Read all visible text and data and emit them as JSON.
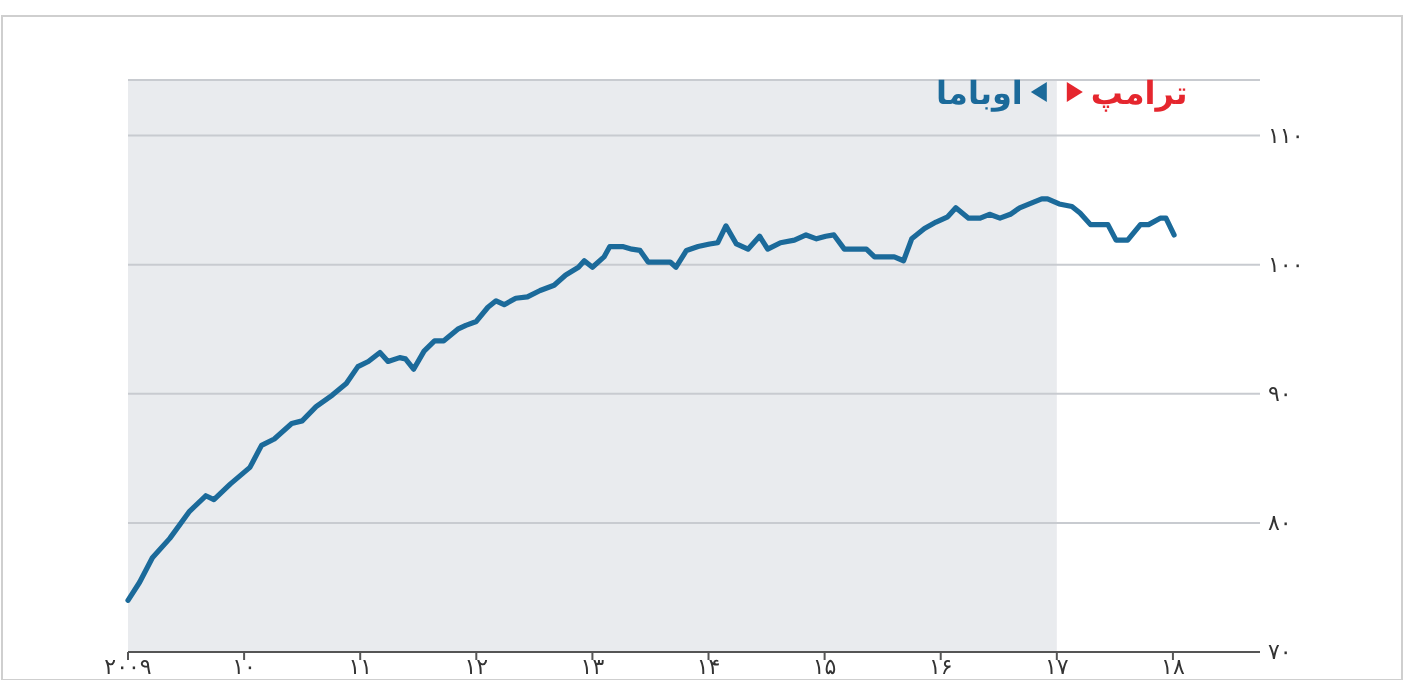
{
  "chart_data": {
    "type": "line",
    "x": [
      2009.0,
      2009.1,
      2009.21,
      2009.36,
      2009.53,
      2009.67,
      2009.74,
      2009.88,
      2010.05,
      2010.15,
      2010.26,
      2010.41,
      2010.5,
      2010.62,
      2010.76,
      2010.88,
      2010.98,
      2011.07,
      2011.17,
      2011.24,
      2011.34,
      2011.39,
      2011.46,
      2011.55,
      2011.64,
      2011.72,
      2011.84,
      2011.91,
      2012.0,
      2012.1,
      2012.17,
      2012.24,
      2012.34,
      2012.44,
      2012.55,
      2012.67,
      2012.77,
      2012.88,
      2012.93,
      2013.0,
      2013.1,
      2013.15,
      2013.26,
      2013.34,
      2013.41,
      2013.48,
      2013.6,
      2013.67,
      2013.72,
      2013.81,
      2013.91,
      2014.01,
      2014.08,
      2014.15,
      2014.24,
      2014.34,
      2014.44,
      2014.51,
      2014.62,
      2014.74,
      2014.84,
      2014.93,
      2015.01,
      2015.08,
      2015.17,
      2015.27,
      2015.36,
      2015.43,
      2015.53,
      2015.6,
      2015.68,
      2015.75,
      2015.86,
      2015.96,
      2016.06,
      2016.13,
      2016.24,
      2016.34,
      2016.42,
      2016.51,
      2016.6,
      2016.68,
      2016.79,
      2016.87,
      2016.92,
      2017.02,
      2017.13,
      2017.2,
      2017.29,
      2017.37,
      2017.44,
      2017.51,
      2017.61,
      2017.72,
      2017.79,
      2017.89,
      2017.94,
      2018.01
    ],
    "series": [
      {
        "color": "#1b6a9a",
        "values": [
          74.0,
          75.4,
          77.3,
          78.8,
          80.9,
          82.1,
          81.8,
          83.0,
          84.3,
          86.0,
          86.5,
          87.7,
          87.9,
          89.0,
          89.9,
          90.8,
          92.1,
          92.5,
          93.2,
          92.5,
          92.8,
          92.7,
          91.9,
          93.3,
          94.1,
          94.1,
          95.0,
          95.3,
          95.6,
          96.7,
          97.2,
          96.9,
          97.4,
          97.5,
          98.0,
          98.4,
          99.2,
          99.8,
          100.3,
          99.8,
          100.6,
          101.4,
          101.4,
          101.2,
          101.1,
          100.2,
          100.2,
          100.2,
          99.8,
          101.1,
          101.4,
          101.6,
          101.7,
          103.0,
          101.6,
          101.2,
          102.2,
          101.2,
          101.7,
          101.9,
          102.3,
          102.0,
          102.2,
          102.3,
          101.2,
          101.2,
          101.2,
          100.6,
          100.6,
          100.6,
          100.3,
          102.0,
          102.8,
          103.3,
          103.7,
          104.4,
          103.6,
          103.6,
          103.9,
          103.6,
          103.9,
          104.4,
          104.8,
          105.1,
          105.1,
          104.7,
          104.5,
          104.0,
          103.1,
          103.1,
          103.1,
          101.9,
          101.9,
          103.1,
          103.1,
          103.6,
          103.6,
          102.3
        ]
      }
    ],
    "xlim": [
      2009,
      2018.75
    ],
    "xticks": [
      {
        "value": 2009,
        "label": "۲۰۰۹"
      },
      {
        "value": 2010,
        "label": "۱۰"
      },
      {
        "value": 2011,
        "label": "۱۱"
      },
      {
        "value": 2012,
        "label": "۱۲"
      },
      {
        "value": 2013,
        "label": "۱۳"
      },
      {
        "value": 2014,
        "label": "۱۴"
      },
      {
        "value": 2015,
        "label": "۱۵"
      },
      {
        "value": 2016,
        "label": "۱۶"
      },
      {
        "value": 2017,
        "label": "۱۷"
      },
      {
        "value": 2018,
        "label": "۱۸"
      }
    ],
    "ylim": [
      70,
      114.3
    ],
    "yticks": [
      {
        "value": 70,
        "label": "۷۰"
      },
      {
        "value": 80,
        "label": "۸۰"
      },
      {
        "value": 90,
        "label": "۹۰"
      },
      {
        "value": 100,
        "label": "۱۰۰"
      },
      {
        "value": 110,
        "label": "۱۱۰"
      }
    ],
    "grid": "y",
    "bands": [
      {
        "axis": "x",
        "from": 2009,
        "to": 2017,
        "label": "اوباما",
        "color": "#e9ebee"
      }
    ],
    "annotations": [
      "ترامپ"
    ]
  }
}
